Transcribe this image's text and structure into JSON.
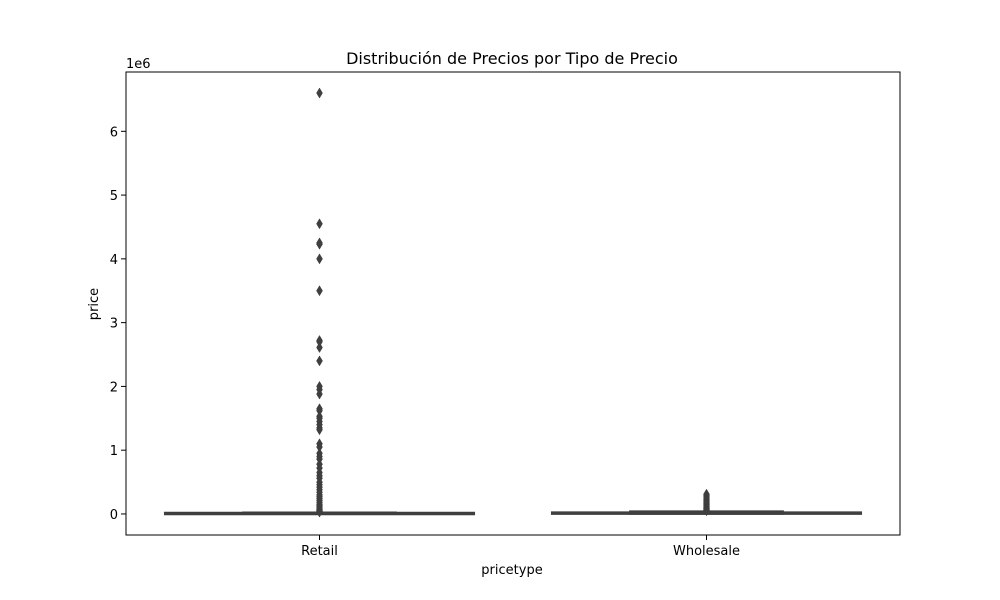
{
  "chart_data": {
    "type": "box",
    "title": "Distribución de Precios por Tipo de Precio",
    "xlabel": "pricetype",
    "ylabel": "price",
    "y_offset_label": "1e6",
    "y_scale": 1000000,
    "ylim": [
      -330000,
      6930000
    ],
    "y_ticks": [
      0,
      1000000,
      2000000,
      3000000,
      4000000,
      5000000,
      6000000
    ],
    "y_tick_labels": [
      "0",
      "1",
      "2",
      "3",
      "4",
      "5",
      "6"
    ],
    "categories": [
      "Retail",
      "Wholesale"
    ],
    "boxes": [
      {
        "category": "Retail",
        "q1": 2000,
        "median": 5000,
        "q3": 12000,
        "whisker_low": 0,
        "whisker_high": 27000,
        "outliers": [
          6600000,
          4550000,
          4250000,
          4230000,
          4000000,
          3500000,
          2720000,
          2700000,
          2610000,
          2400000,
          2000000,
          1950000,
          1880000,
          1650000,
          1620000,
          1530000,
          1500000,
          1450000,
          1400000,
          1350000,
          1320000,
          1100000,
          1050000,
          950000,
          900000,
          860000,
          780000,
          720000,
          650000,
          600000,
          560000,
          500000,
          460000,
          420000,
          380000,
          340000,
          300000,
          270000,
          240000,
          210000,
          180000,
          150000,
          130000,
          110000,
          90000,
          75000,
          60000,
          50000,
          42000,
          35000,
          30000
        ]
      },
      {
        "category": "Wholesale",
        "q1": 4000,
        "median": 9000,
        "q3": 22000,
        "whisker_low": 0,
        "whisker_high": 45000,
        "outliers": [
          310000,
          290000,
          270000,
          250000,
          230000,
          210000,
          190000,
          175000,
          160000,
          145000,
          130000,
          115000,
          100000,
          90000,
          80000,
          70000,
          62000,
          55000,
          50000
        ]
      }
    ],
    "colors": {
      "box": "#3f3f3f",
      "outlier": "#3f3f3f"
    }
  }
}
